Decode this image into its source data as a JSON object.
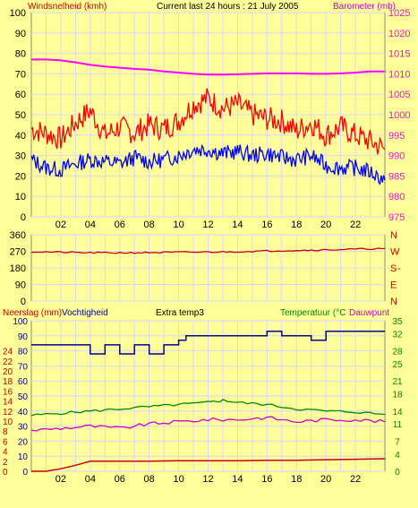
{
  "header": {
    "left_title": "Windsnelheid (kmh)",
    "center_title": "Current last 24 hours : 21 July 2005",
    "right_title": "Barometer (mb)"
  },
  "hour_labels": [
    "02",
    "04",
    "06",
    "08",
    "10",
    "12",
    "14",
    "16",
    "18",
    "20",
    "22"
  ],
  "colors": {
    "background": "#ffff99",
    "grid": "#d6d6ff",
    "axis_text": "#000000",
    "baro": "#ff00ff",
    "wind_gust": "#ff0000",
    "wind_avg": "#0000ff",
    "direction": "#cc0000",
    "rain": "#cc0000",
    "humidity": "#000099",
    "temperature": "#008800",
    "dewpoint": "#cc00cc",
    "right_axis_green": "#008800"
  },
  "chart_data": [
    {
      "id": "wind",
      "type": "line",
      "title": "Current last 24 hours : 21 July 2005",
      "x_range": [
        0,
        24
      ],
      "x_tick_labels": [
        "02",
        "04",
        "06",
        "08",
        "10",
        "12",
        "14",
        "16",
        "18",
        "20",
        "22"
      ],
      "left_axis": {
        "label": "Windsnelheid (kmh)",
        "range": [
          0,
          100
        ],
        "ticks": [
          0,
          10,
          20,
          30,
          40,
          50,
          60,
          70,
          80,
          90,
          100
        ]
      },
      "right_axis": {
        "label": "Barometer (mb)",
        "range": [
          975,
          1025
        ],
        "ticks": [
          975,
          980,
          985,
          990,
          995,
          1000,
          1005,
          1010,
          1015,
          1020,
          1025
        ]
      },
      "grid": true,
      "series": [
        {
          "key": "gust",
          "axis": "left",
          "x": [
            0,
            1,
            2,
            3,
            4,
            5,
            6,
            7,
            8,
            9,
            10,
            11,
            12,
            13,
            14,
            15,
            16,
            17,
            18,
            19,
            20,
            21,
            22,
            23,
            24
          ],
          "y": [
            43,
            41,
            38,
            46,
            52,
            40,
            44,
            41,
            45,
            43,
            47,
            55,
            58,
            53,
            55,
            50,
            48,
            47,
            42,
            46,
            40,
            44,
            40,
            37,
            33
          ]
        },
        {
          "key": "avg",
          "axis": "left",
          "x": [
            0,
            1,
            2,
            3,
            4,
            5,
            6,
            7,
            8,
            9,
            10,
            11,
            12,
            13,
            14,
            15,
            16,
            17,
            18,
            19,
            20,
            21,
            22,
            23,
            24
          ],
          "y": [
            28,
            24,
            23,
            26,
            28,
            27,
            26,
            29,
            27,
            28,
            30,
            33,
            33,
            31,
            32,
            30,
            31,
            29,
            28,
            30,
            25,
            24,
            24,
            22,
            18
          ]
        },
        {
          "key": "baro",
          "axis": "right",
          "x": [
            0,
            1,
            2,
            3,
            4,
            5,
            6,
            7,
            8,
            9,
            10,
            11,
            12,
            13,
            14,
            15,
            16,
            17,
            18,
            19,
            20,
            21,
            22,
            23,
            24
          ],
          "y": [
            1013.5,
            1013.5,
            1013.3,
            1012.8,
            1012.2,
            1011.8,
            1011.5,
            1011.2,
            1011,
            1010.6,
            1010.3,
            1010,
            1009.8,
            1009.8,
            1009.9,
            1010,
            1010.1,
            1010.1,
            1010.1,
            1010,
            1010,
            1010.1,
            1010.3,
            1010.6,
            1010.6
          ]
        }
      ]
    },
    {
      "id": "direction",
      "type": "line",
      "x_range": [
        0,
        24
      ],
      "left_axis": {
        "range": [
          0,
          360
        ],
        "ticks": [
          0,
          90,
          180,
          270,
          360
        ]
      },
      "right_axis": {
        "tick_labels": [
          "N",
          "W",
          "S",
          "E",
          "N"
        ]
      },
      "grid": true,
      "series": [
        {
          "key": "dir",
          "x": [
            0,
            2,
            4,
            6,
            8,
            10,
            12,
            14,
            16,
            18,
            20,
            22,
            24
          ],
          "y": [
            268,
            265,
            262,
            262,
            263,
            265,
            266,
            268,
            272,
            275,
            278,
            282,
            285
          ]
        }
      ]
    },
    {
      "id": "weather",
      "type": "line",
      "x_range": [
        0,
        24
      ],
      "labels": {
        "rain": "Neerslag (mm)",
        "humidity": "Vochtigheid",
        "extra": "Extra temp3",
        "temperature": "Temperatuur (°C",
        "dewpoint": "Dauwpunt"
      },
      "left_axis_rain": {
        "ticks": [
          0,
          2,
          4,
          6,
          8,
          10,
          12,
          14,
          16,
          18,
          20,
          22,
          24
        ]
      },
      "left_axis_humidity": {
        "ticks": [
          0,
          10,
          20,
          30,
          40,
          50,
          60,
          70,
          80,
          90,
          100
        ]
      },
      "right_axis_temp": {
        "ticks": [
          0,
          4,
          7,
          11,
          14,
          18,
          21,
          25,
          28,
          32,
          35
        ]
      },
      "grid": true,
      "series": [
        {
          "key": "rain",
          "x": [
            0,
            1,
            2,
            3,
            4,
            6,
            8,
            10,
            12,
            14,
            16,
            18,
            20,
            22,
            24
          ],
          "y": [
            0,
            0,
            0.5,
            1.2,
            2.0,
            2.0,
            2.0,
            2.1,
            2.1,
            2.1,
            2.2,
            2.2,
            2.3,
            2.4,
            2.5
          ]
        },
        {
          "key": "humidity",
          "x": [
            0,
            4,
            4,
            5,
            5,
            6,
            6,
            7,
            7,
            8,
            8,
            9,
            9,
            10,
            10,
            10.5,
            10.5,
            16,
            16,
            17,
            17,
            19,
            19,
            20,
            20,
            24
          ],
          "y": [
            84,
            84,
            78,
            78,
            84,
            84,
            78,
            78,
            84,
            84,
            78,
            78,
            84,
            84,
            87,
            87,
            90,
            90,
            93,
            93,
            90,
            90,
            87,
            87,
            93,
            93
          ]
        },
        {
          "key": "temperature",
          "x": [
            0,
            2,
            4,
            6,
            8,
            10,
            12,
            13,
            14,
            16,
            18,
            20,
            22,
            24
          ],
          "y": [
            13,
            13.5,
            14,
            14.5,
            15,
            15.5,
            16,
            16.5,
            16,
            15.5,
            14.5,
            14,
            13.8,
            13.2
          ]
        },
        {
          "key": "dewpoint",
          "x": [
            0,
            2,
            4,
            6,
            8,
            10,
            12,
            14,
            16,
            18,
            20,
            22,
            24
          ],
          "y": [
            9.5,
            10,
            10.5,
            10,
            11,
            11.5,
            12,
            12,
            12.5,
            11.5,
            12,
            12,
            11.5
          ]
        }
      ]
    }
  ]
}
